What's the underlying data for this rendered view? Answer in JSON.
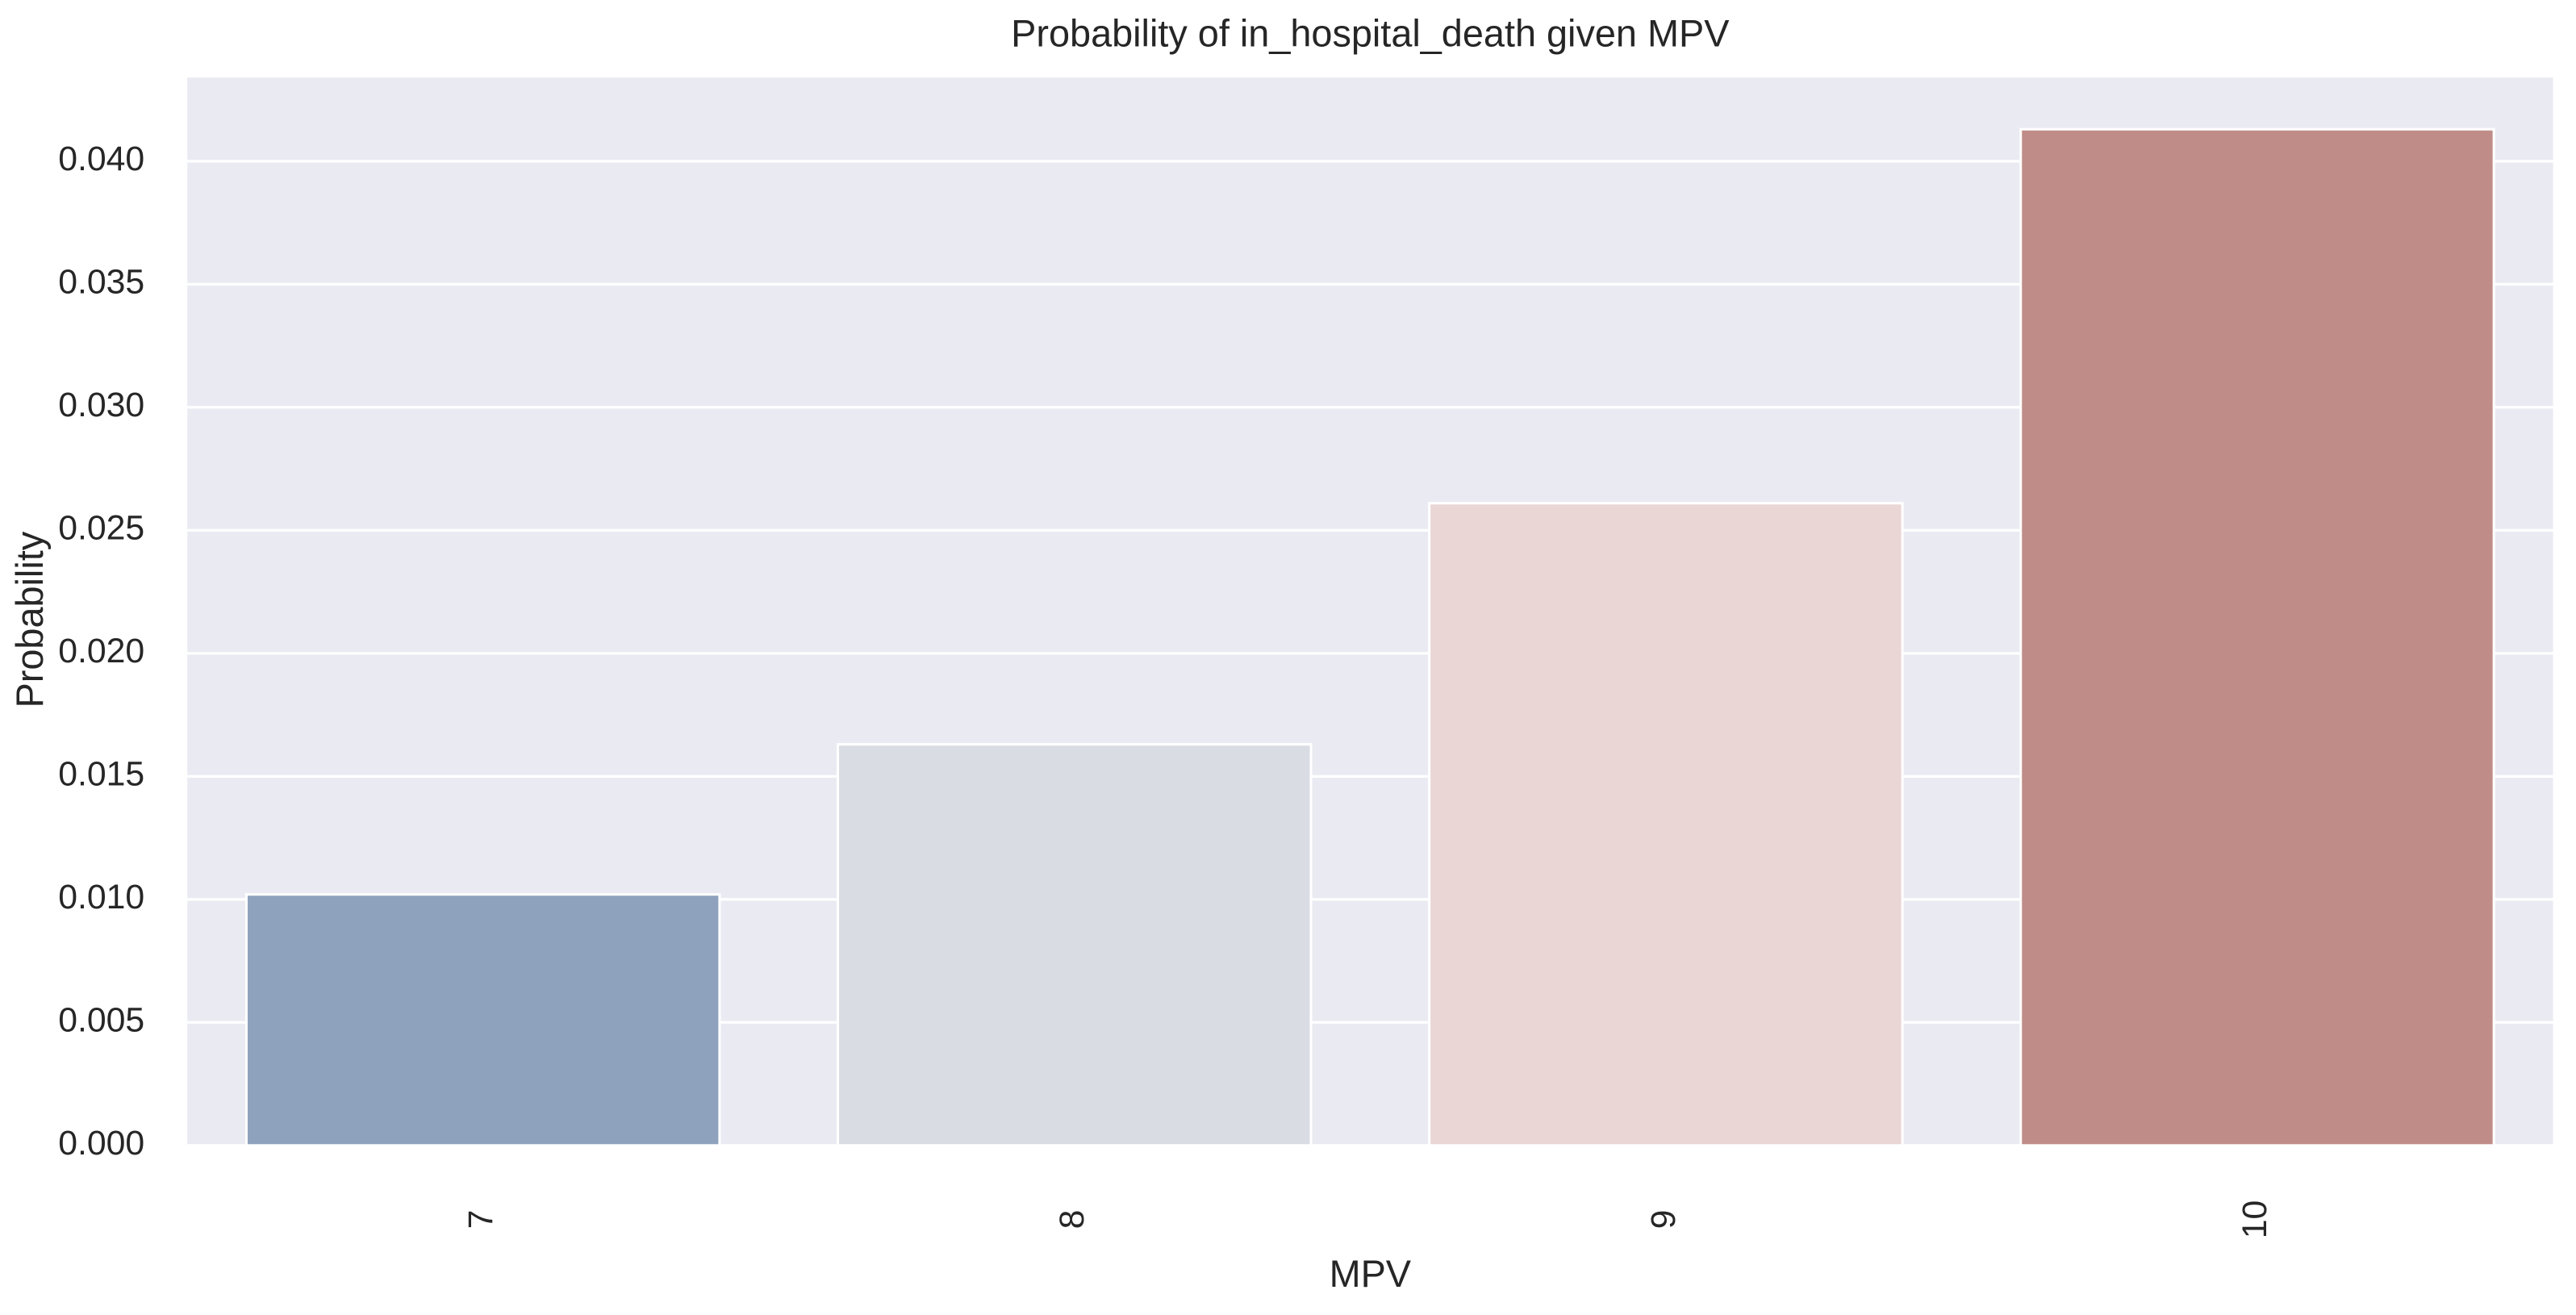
{
  "chart_data": {
    "type": "bar",
    "title": "Probability of in_hospital_death given MPV",
    "x_label": "MPV",
    "y_label": "Probability",
    "categories": [
      "7",
      "8",
      "9",
      "10"
    ],
    "values": [
      0.0102,
      0.0163,
      0.0261,
      0.0413
    ],
    "colors": [
      "#8ea2bd",
      "#d9dce3",
      "#e9d6d5",
      "#c08c88"
    ],
    "ylim": [
      0,
      0.0434
    ],
    "yticks": [
      {
        "value": 0,
        "label": "0.000"
      },
      {
        "value": 0.005,
        "label": "0.005"
      },
      {
        "value": 0.01,
        "label": "0.010"
      },
      {
        "value": 0.015,
        "label": "0.015"
      },
      {
        "value": 0.02,
        "label": "0.020"
      },
      {
        "value": 0.025,
        "label": "0.025"
      },
      {
        "value": 0.03,
        "label": "0.030"
      },
      {
        "value": 0.035,
        "label": "0.035"
      },
      {
        "value": 0.04,
        "label": "0.040"
      }
    ],
    "grid": true,
    "background": "#eaeaf2"
  }
}
